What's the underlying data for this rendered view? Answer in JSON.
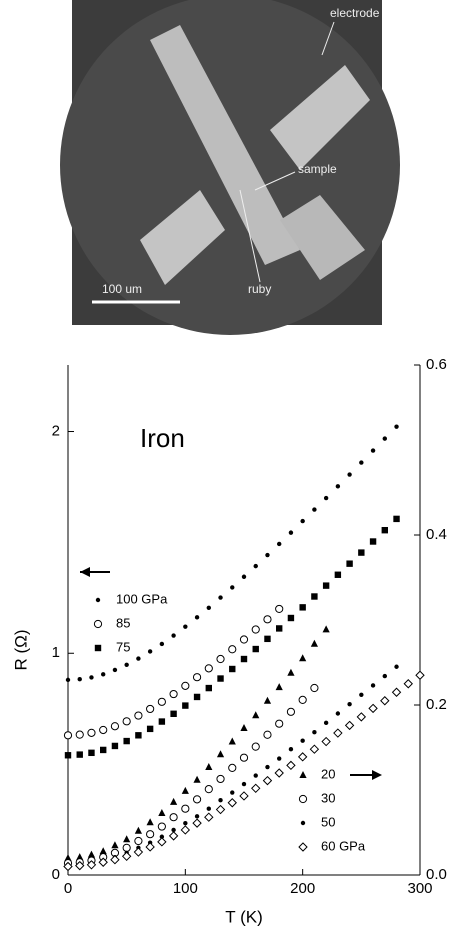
{
  "photo": {
    "labels": [
      "electrode",
      "sample",
      "ruby"
    ],
    "scale_bar": "100 um"
  },
  "chart_data": {
    "type": "scatter",
    "annotation": "Iron",
    "xlabel": "T (K)",
    "ylabel": "R (Ω)",
    "xlim": [
      0,
      300
    ],
    "xticks": [
      0,
      100,
      200,
      300
    ],
    "ylim": [
      0,
      2.3
    ],
    "yticks": [
      0,
      1,
      2
    ],
    "y2lim": [
      0,
      0.6
    ],
    "y2ticks": [
      {
        "value": 0,
        "label": "0.0"
      },
      0.2,
      0.4,
      0.6
    ],
    "series": [
      {
        "name": "100 GPa",
        "color": "#000",
        "marker": "dot",
        "x": [
          0,
          10,
          20,
          30,
          40,
          50,
          60,
          70,
          80,
          90,
          100,
          110,
          120,
          130,
          140,
          150,
          160,
          170,
          180,
          190,
          200,
          210,
          220,
          230,
          240,
          250,
          260,
          270,
          280
        ],
        "values": [
          0.88,
          0.883,
          0.891,
          0.905,
          0.925,
          0.948,
          0.976,
          1.008,
          1.042,
          1.08,
          1.12,
          1.162,
          1.205,
          1.251,
          1.297,
          1.345,
          1.393,
          1.443,
          1.493,
          1.544,
          1.596,
          1.648,
          1.7,
          1.753,
          1.806,
          1.86,
          1.914,
          1.968,
          2.022
        ]
      },
      {
        "name": "85",
        "color": "#000",
        "marker": "circle",
        "x": [
          0,
          10,
          20,
          30,
          40,
          50,
          60,
          70,
          80,
          90,
          100,
          110,
          120,
          130,
          140,
          150,
          160,
          170,
          180
        ],
        "values": [
          0.63,
          0.633,
          0.641,
          0.654,
          0.671,
          0.693,
          0.719,
          0.749,
          0.781,
          0.816,
          0.853,
          0.892,
          0.932,
          0.974,
          1.018,
          1.062,
          1.107,
          1.153,
          1.2
        ]
      },
      {
        "name": "75",
        "color": "#000",
        "marker": "square",
        "x": [
          0,
          10,
          20,
          30,
          40,
          50,
          60,
          70,
          80,
          90,
          100,
          110,
          120,
          130,
          140,
          150,
          160,
          170,
          180,
          190,
          200,
          210,
          220,
          230,
          240,
          250,
          260,
          270,
          280
        ],
        "values": [
          0.54,
          0.543,
          0.551,
          0.564,
          0.582,
          0.604,
          0.63,
          0.659,
          0.692,
          0.727,
          0.764,
          0.803,
          0.843,
          0.886,
          0.929,
          0.974,
          1.019,
          1.065,
          1.112,
          1.159,
          1.207,
          1.256,
          1.305,
          1.354,
          1.404,
          1.454,
          1.504,
          1.555,
          1.606
        ]
      },
      {
        "name": "20",
        "color": "#000",
        "marker": "triangle",
        "axis": "y2",
        "x": [
          0,
          10,
          20,
          30,
          40,
          50,
          60,
          70,
          80,
          90,
          100,
          110,
          120,
          130,
          140,
          150,
          160,
          170,
          180,
          190,
          200,
          210,
          220
        ],
        "values": [
          0.02,
          0.021,
          0.024,
          0.028,
          0.035,
          0.042,
          0.052,
          0.062,
          0.073,
          0.086,
          0.099,
          0.112,
          0.127,
          0.142,
          0.157,
          0.173,
          0.188,
          0.205,
          0.221,
          0.238,
          0.255,
          0.272,
          0.289
        ]
      },
      {
        "name": "30",
        "color": "#000",
        "marker": "circle",
        "axis": "y2",
        "x": [
          0,
          10,
          20,
          30,
          40,
          50,
          60,
          70,
          80,
          90,
          100,
          110,
          120,
          130,
          140,
          150,
          160,
          170,
          180,
          190,
          200,
          210
        ],
        "values": [
          0.014,
          0.015,
          0.017,
          0.021,
          0.026,
          0.032,
          0.04,
          0.048,
          0.057,
          0.068,
          0.078,
          0.089,
          0.101,
          0.113,
          0.126,
          0.138,
          0.151,
          0.165,
          0.178,
          0.192,
          0.206,
          0.22
        ]
      },
      {
        "name": "50",
        "color": "#000",
        "marker": "dot",
        "axis": "y2",
        "x": [
          0,
          10,
          20,
          30,
          40,
          50,
          60,
          70,
          80,
          90,
          100,
          110,
          120,
          130,
          140,
          150,
          160,
          170,
          180,
          190,
          200,
          210,
          220,
          230,
          240,
          250,
          260,
          270,
          280
        ],
        "values": [
          0.012,
          0.013,
          0.014,
          0.017,
          0.021,
          0.026,
          0.032,
          0.038,
          0.045,
          0.053,
          0.061,
          0.069,
          0.078,
          0.088,
          0.097,
          0.107,
          0.117,
          0.127,
          0.137,
          0.148,
          0.158,
          0.168,
          0.179,
          0.19,
          0.201,
          0.212,
          0.223,
          0.234,
          0.245
        ]
      },
      {
        "name": "60 GPa",
        "color": "#000",
        "marker": "diamond",
        "axis": "y2",
        "x": [
          0,
          10,
          20,
          30,
          40,
          50,
          60,
          70,
          80,
          90,
          100,
          110,
          120,
          130,
          140,
          150,
          160,
          170,
          180,
          190,
          200,
          210,
          220,
          230,
          240,
          250,
          260,
          270,
          280,
          290,
          300
        ],
        "values": [
          0.01,
          0.011,
          0.012,
          0.015,
          0.018,
          0.022,
          0.027,
          0.033,
          0.039,
          0.046,
          0.053,
          0.061,
          0.068,
          0.077,
          0.085,
          0.093,
          0.102,
          0.111,
          0.12,
          0.129,
          0.139,
          0.148,
          0.157,
          0.167,
          0.176,
          0.186,
          0.196,
          0.205,
          0.215,
          0.225,
          0.235
        ]
      }
    ]
  }
}
